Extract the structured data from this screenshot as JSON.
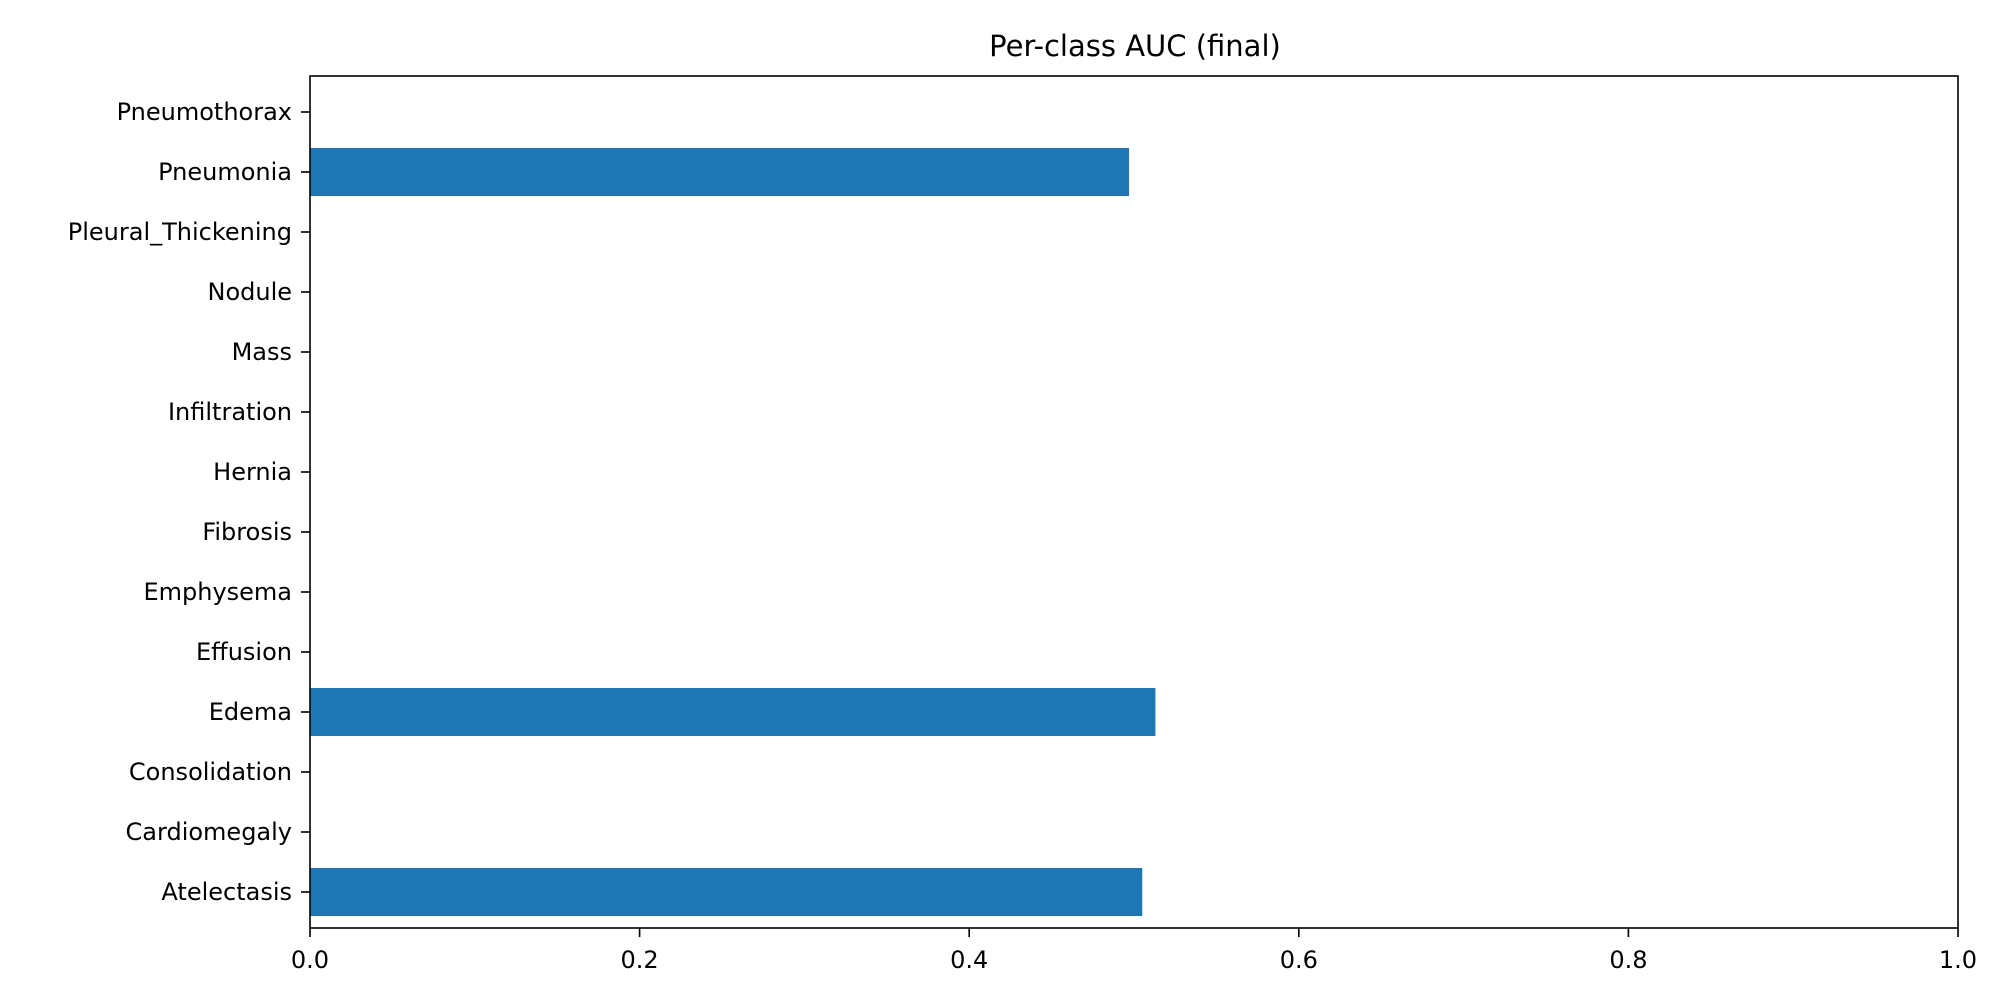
{
  "chart_data": {
    "type": "bar",
    "orientation": "horizontal",
    "title": "Per-class AUC (final)",
    "xlabel": "",
    "ylabel": "",
    "categories": [
      "Atelectasis",
      "Cardiomegaly",
      "Consolidation",
      "Edema",
      "Effusion",
      "Emphysema",
      "Fibrosis",
      "Hernia",
      "Infiltration",
      "Mass",
      "Nodule",
      "Pleural_Thickening",
      "Pneumonia",
      "Pneumothorax"
    ],
    "values": [
      0.505,
      null,
      null,
      0.513,
      null,
      null,
      null,
      null,
      null,
      null,
      null,
      null,
      0.497,
      null
    ],
    "xlim": [
      0,
      1
    ],
    "xticks": [
      0.0,
      0.2,
      0.4,
      0.6,
      0.8,
      1.0
    ],
    "xtick_labels": [
      "0.0",
      "0.2",
      "0.4",
      "0.6",
      "0.8",
      "1.0"
    ],
    "grid": false,
    "bar_color": "#1f77b4"
  }
}
